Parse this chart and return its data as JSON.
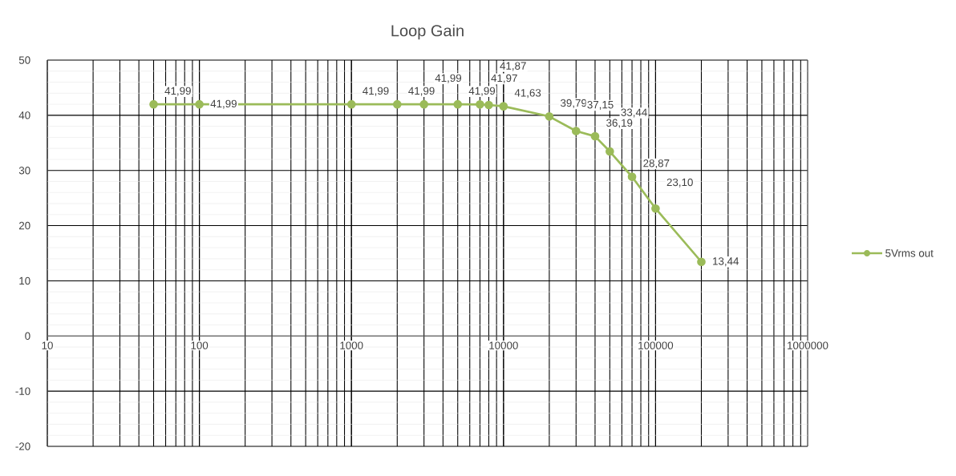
{
  "chart_data": {
    "type": "line",
    "title": "Loop Gain",
    "x": [
      50,
      100,
      1000,
      2000,
      3000,
      5000,
      7000,
      8000,
      10000,
      20000,
      30000,
      40000,
      50000,
      70000,
      100000,
      200000
    ],
    "series": [
      {
        "name": "5Vrms out",
        "color": "#9bbb59",
        "values": [
          41.99,
          41.99,
          41.99,
          41.99,
          41.99,
          41.99,
          41.97,
          41.87,
          41.63,
          39.79,
          37.15,
          36.19,
          33.44,
          28.87,
          23.1,
          13.44
        ],
        "value_labels": [
          "41,99",
          "41,99",
          "41,99",
          "41,99",
          "41,99",
          "41,99",
          "41,97",
          "41,87",
          "41,63",
          "39,79",
          "37,15",
          "36,19",
          "33,44",
          "28,87",
          "23,10",
          "13,44"
        ]
      }
    ],
    "log": "x",
    "xlim": [
      10,
      1000000
    ],
    "xticks": [
      10,
      100,
      1000,
      10000,
      100000,
      1000000
    ],
    "ylim": [
      -20,
      50
    ],
    "yticks": [
      -20,
      -10,
      0,
      10,
      20,
      30,
      40,
      50
    ],
    "grid": true,
    "legend": "right",
    "marker": "circle",
    "line_style": "solid"
  }
}
